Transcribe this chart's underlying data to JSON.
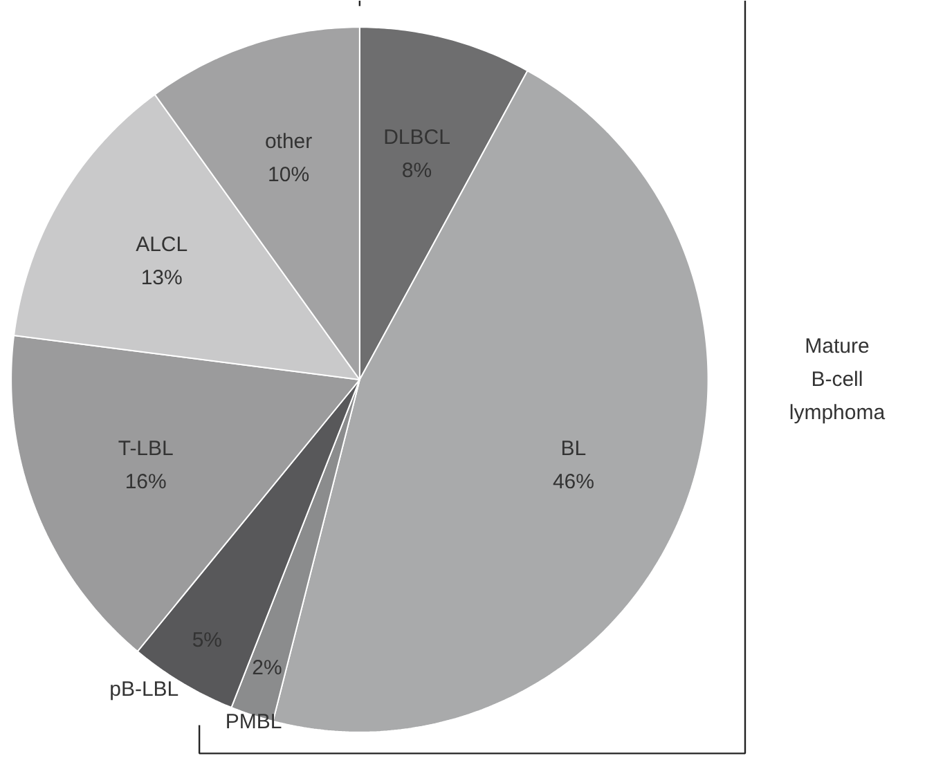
{
  "chart_data": {
    "type": "pie",
    "categories": [
      "DLBCL",
      "BL",
      "PMBL",
      "pB-LBL",
      "T-LBL",
      "ALCL",
      "other"
    ],
    "values": [
      8,
      46,
      2,
      5,
      16,
      13,
      10
    ],
    "value_labels": [
      "8%",
      "46%",
      "2%",
      "5%",
      "16%",
      "13%",
      "10%"
    ],
    "colors": [
      "#6e6e6f",
      "#a9aaab",
      "#8b8c8d",
      "#58585a",
      "#9b9b9c",
      "#c9c9ca",
      "#a2a2a3"
    ],
    "annotations": [
      "Mature\nB-cell\nlymphoma"
    ]
  }
}
